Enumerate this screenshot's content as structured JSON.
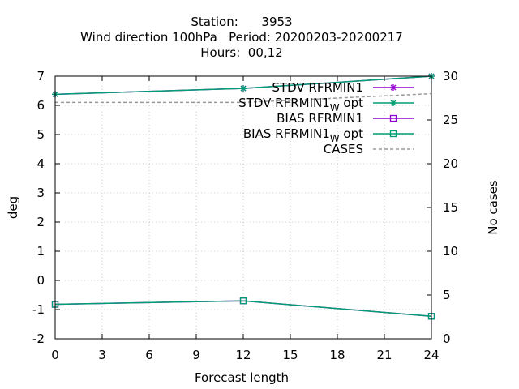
{
  "chart_data": {
    "type": "line",
    "title_lines": [
      "Station:      3953",
      "Wind direction 100hPa   Period: 20200203-20200217",
      "Hours:  00,12"
    ],
    "xlabel": "Forecast length",
    "ylabel": "deg",
    "y2label": "No cases",
    "xlim": [
      0,
      24
    ],
    "ylim": [
      -2,
      7
    ],
    "y2lim": [
      0,
      30
    ],
    "xticks": [
      0,
      3,
      6,
      9,
      12,
      15,
      18,
      21,
      24
    ],
    "yticks": [
      -2,
      -1,
      0,
      1,
      2,
      3,
      4,
      5,
      6,
      7
    ],
    "y2ticks": [
      0,
      5,
      10,
      15,
      20,
      25,
      30
    ],
    "grid": true,
    "legend_position": "top-right",
    "series": [
      {
        "name": "STDV RFRMIN1",
        "axis": "y",
        "marker": "star",
        "dash": "solid",
        "color": "#9400d3",
        "x": [
          0,
          12,
          24
        ],
        "values": [
          6.38,
          6.58,
          7.0
        ]
      },
      {
        "name": "STDV RFRMIN1",
        "name_sub": "W",
        "name_suffix": "opt",
        "axis": "y",
        "marker": "star",
        "dash": "solid",
        "color": "#009e73",
        "x": [
          0,
          12,
          24
        ],
        "values": [
          6.38,
          6.58,
          7.0
        ]
      },
      {
        "name": "BIAS RFRMIN1",
        "axis": "y",
        "marker": "square",
        "dash": "solid",
        "color": "#9400d3",
        "x": [
          0,
          12,
          24
        ],
        "values": [
          -0.82,
          -0.7,
          -1.23
        ]
      },
      {
        "name": "BIAS RFRMIN1",
        "name_sub": "W",
        "name_suffix": "opt",
        "axis": "y",
        "marker": "square",
        "dash": "solid",
        "color": "#009e73",
        "x": [
          0,
          12,
          24
        ],
        "values": [
          -0.82,
          -0.7,
          -1.23
        ]
      },
      {
        "name": "CASES",
        "axis": "y2",
        "marker": "none",
        "dash": "dashed",
        "color": "#999999",
        "x": [
          0,
          12,
          24
        ],
        "values": [
          27,
          27,
          28
        ]
      }
    ]
  }
}
